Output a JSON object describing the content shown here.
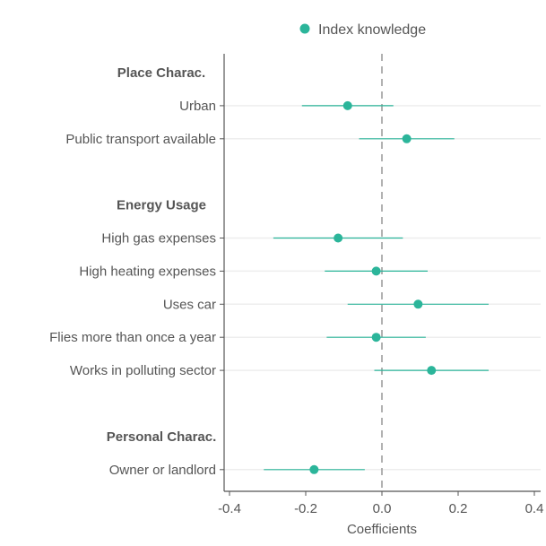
{
  "chart_data": {
    "type": "scatter",
    "xlabel": "Coefficients",
    "xlim": [
      -0.42,
      0.41
    ],
    "xticks": [
      -0.4,
      -0.2,
      0.0,
      0.2,
      0.4
    ],
    "xtick_labels": [
      "-0.4",
      "-0.2",
      "0.0",
      "0.2",
      "0.4"
    ],
    "reference_line": 0,
    "legend": {
      "placement": "top",
      "entries": [
        "Index knowledge"
      ]
    },
    "series_color": "#2bb59a",
    "groups": [
      {
        "label": "Place Charac.",
        "items": [
          {
            "label": "Urban",
            "estimate": -0.09,
            "ci": [
              -0.21,
              0.03
            ]
          },
          {
            "label": "Public transport available",
            "estimate": 0.065,
            "ci": [
              -0.06,
              0.19
            ]
          }
        ]
      },
      {
        "label": "Energy Usage",
        "items": [
          {
            "label": "High gas expenses",
            "estimate": -0.115,
            "ci": [
              -0.285,
              0.055
            ]
          },
          {
            "label": "High heating expenses",
            "estimate": -0.015,
            "ci": [
              -0.15,
              0.12
            ]
          },
          {
            "label": "Uses car",
            "estimate": 0.095,
            "ci": [
              -0.09,
              0.28
            ]
          },
          {
            "label": "Flies more than once a year",
            "estimate": -0.015,
            "ci": [
              -0.145,
              0.115
            ]
          },
          {
            "label": "Works in polluting sector",
            "estimate": 0.13,
            "ci": [
              -0.02,
              0.28
            ]
          }
        ]
      },
      {
        "label": "Personal Charac.",
        "items": [
          {
            "label": "Owner or landlord",
            "estimate": -0.178,
            "ci": [
              -0.31,
              -0.045
            ]
          }
        ]
      }
    ]
  }
}
